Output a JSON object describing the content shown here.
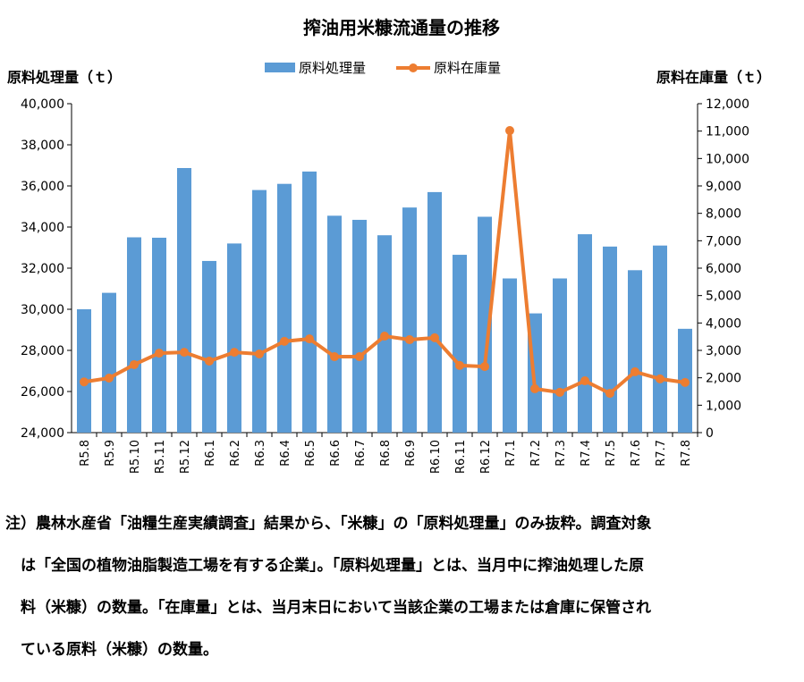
{
  "chart_data": {
    "type": "bar+line",
    "title": "搾油用米糠流通量の推移",
    "ylabel_left": "原料処理量（ｔ）",
    "ylabel_right": "原料在庫量（ｔ）",
    "legend_position": "top",
    "categories": [
      "R5.8",
      "R5.9",
      "R5.10",
      "R5.11",
      "R5.12",
      "R6.1",
      "R6.2",
      "R6.3",
      "R6.4",
      "R6.5",
      "R6.6",
      "R6.7",
      "R6.8",
      "R6.9",
      "R6.10",
      "R6.11",
      "R6.12",
      "R7.1",
      "R7.2",
      "R7.3",
      "R7.4",
      "R7.5",
      "R7.6",
      "R7.7",
      "R7.8"
    ],
    "series": [
      {
        "name": "原料処理量",
        "type": "bar",
        "axis": "left",
        "color": "#5B9BD5",
        "values": [
          30000,
          30800,
          33500,
          33480,
          36870,
          32350,
          33200,
          35800,
          36100,
          36700,
          34550,
          34350,
          33600,
          34950,
          35700,
          32650,
          34500,
          31500,
          29800,
          31500,
          33650,
          33050,
          31900,
          33100,
          29050
        ]
      },
      {
        "name": "原料在庫量",
        "type": "line",
        "axis": "right",
        "color": "#ED7D31",
        "values": [
          1850,
          1990,
          2480,
          2900,
          2930,
          2610,
          2930,
          2870,
          3330,
          3420,
          2770,
          2770,
          3520,
          3390,
          3460,
          2450,
          2410,
          11020,
          1600,
          1470,
          1890,
          1430,
          2220,
          1960,
          1830
        ]
      }
    ],
    "ylim_left": [
      24000,
      40000
    ],
    "ylim_right": [
      0,
      12000
    ],
    "yticks_left": [
      "24,000",
      "26,000",
      "28,000",
      "30,000",
      "32,000",
      "34,000",
      "36,000",
      "38,000",
      "40,000"
    ],
    "yticks_right": [
      "0",
      "1,000",
      "2,000",
      "3,000",
      "4,000",
      "5,000",
      "6,000",
      "7,000",
      "8,000",
      "9,000",
      "10,000",
      "11,000",
      "12,000"
    ]
  },
  "note": [
    "注）農林水産省「油糧生産実績調査」結果から、「米糠」の「原料処理量」のみ抜粋。調査対象",
    "　は「全国の植物油脂製造工場を有する企業」。「原料処理量」とは、当月中に搾油処理した原",
    "　料（米糠）の数量。「在庫量」とは、当月末日において当該企業の工場または倉庫に保管され",
    "　ている原料（米糠）の数量。"
  ]
}
